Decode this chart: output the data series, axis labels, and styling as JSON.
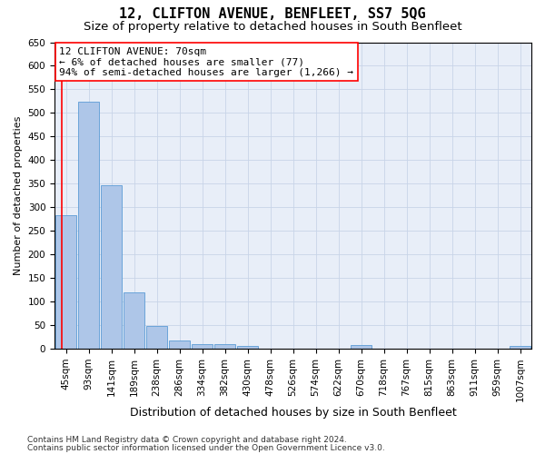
{
  "title": "12, CLIFTON AVENUE, BENFLEET, SS7 5QG",
  "subtitle": "Size of property relative to detached houses in South Benfleet",
  "xlabel": "Distribution of detached houses by size in South Benfleet",
  "ylabel": "Number of detached properties",
  "footer1": "Contains HM Land Registry data © Crown copyright and database right 2024.",
  "footer2": "Contains public sector information licensed under the Open Government Licence v3.0.",
  "categories": [
    "45sqm",
    "93sqm",
    "141sqm",
    "189sqm",
    "238sqm",
    "286sqm",
    "334sqm",
    "382sqm",
    "430sqm",
    "478sqm",
    "526sqm",
    "574sqm",
    "622sqm",
    "670sqm",
    "718sqm",
    "767sqm",
    "815sqm",
    "863sqm",
    "911sqm",
    "959sqm",
    "1007sqm"
  ],
  "bar_heights": [
    283,
    524,
    347,
    120,
    48,
    17,
    11,
    11,
    7,
    0,
    0,
    0,
    0,
    8,
    0,
    0,
    0,
    0,
    0,
    0,
    7
  ],
  "bar_color": "#aec6e8",
  "bar_edge_color": "#5b9bd5",
  "annotation_line1": "12 CLIFTON AVENUE: 70sqm",
  "annotation_line2": "← 6% of detached houses are smaller (77)",
  "annotation_line3": "94% of semi-detached houses are larger (1,266) →",
  "annotation_box_facecolor": "white",
  "annotation_box_edgecolor": "red",
  "vline_color": "red",
  "vline_x": -0.17,
  "ylim": [
    0,
    650
  ],
  "yticks": [
    0,
    50,
    100,
    150,
    200,
    250,
    300,
    350,
    400,
    450,
    500,
    550,
    600,
    650
  ],
  "grid_color": "#c8d4e8",
  "bg_color": "#e8eef8",
  "title_fontsize": 11,
  "subtitle_fontsize": 9.5,
  "xlabel_fontsize": 9,
  "ylabel_fontsize": 8,
  "tick_fontsize": 7.5,
  "annot_fontsize": 8,
  "footer_fontsize": 6.5
}
